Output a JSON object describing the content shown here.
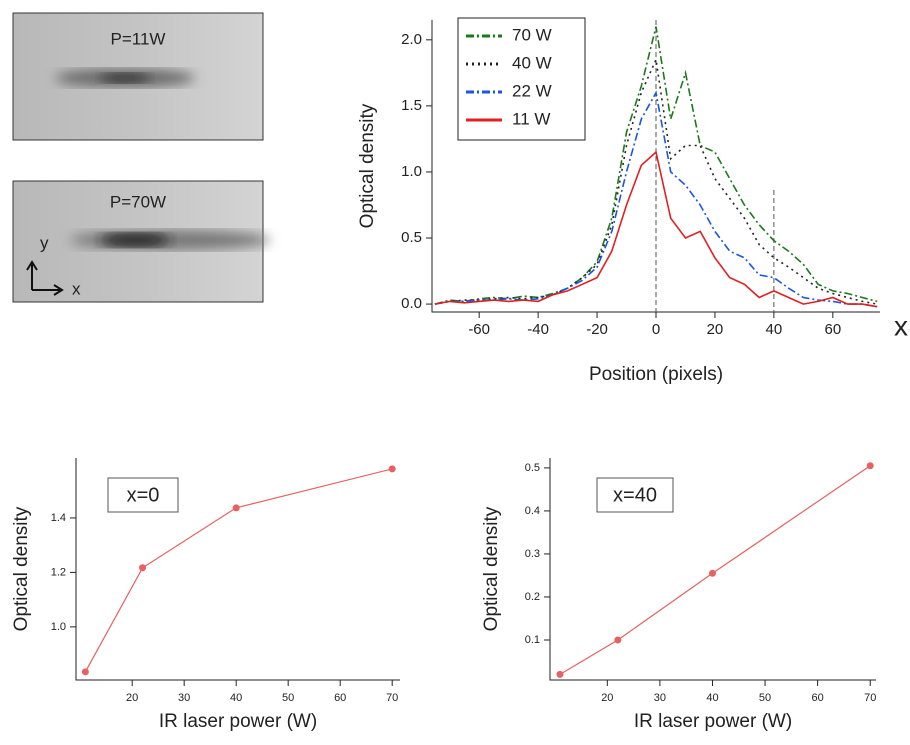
{
  "images": [
    {
      "label": "P=11W"
    },
    {
      "label": "P=70W",
      "axis_y": "y",
      "axis_x": "x"
    }
  ],
  "side_label": "x",
  "chart_data": [
    {
      "type": "line",
      "xlabel": "Position (pixels)",
      "ylabel": "Optical density",
      "xlim": [
        -76,
        76
      ],
      "ylim": [
        -0.06,
        2.15
      ],
      "xticks": [
        -60,
        -40,
        -20,
        0,
        20,
        40,
        60
      ],
      "yticks": [
        {
          "value": 0,
          "label": "0.0"
        },
        {
          "value": 0.5,
          "label": "0.5"
        },
        {
          "value": 1,
          "label": "1.0"
        },
        {
          "value": 1.5,
          "label": "1.5"
        },
        {
          "value": 2,
          "label": "2.0"
        }
      ],
      "vlines": [
        0,
        40
      ],
      "legend": "top-left",
      "x": [
        -75,
        -70,
        -65,
        -60,
        -55,
        -50,
        -45,
        -40,
        -35,
        -30,
        -25,
        -20,
        -15,
        -10,
        -5,
        0,
        5,
        10,
        15,
        20,
        25,
        30,
        35,
        40,
        45,
        50,
        55,
        60,
        65,
        70,
        75
      ],
      "series": [
        {
          "name": "70 W",
          "color": "#1a7a1a",
          "dash": "dashdot",
          "values": [
            0.0,
            0.03,
            0.02,
            0.04,
            0.05,
            0.04,
            0.06,
            0.05,
            0.08,
            0.12,
            0.2,
            0.32,
            0.65,
            1.3,
            1.65,
            2.1,
            1.4,
            1.75,
            1.2,
            1.15,
            0.95,
            0.75,
            0.6,
            0.48,
            0.4,
            0.3,
            0.15,
            0.1,
            0.08,
            0.05,
            0.02
          ]
        },
        {
          "name": "40 W",
          "color": "#222222",
          "dash": "dot",
          "values": [
            0.0,
            0.02,
            0.03,
            0.03,
            0.04,
            0.05,
            0.04,
            0.05,
            0.07,
            0.12,
            0.2,
            0.3,
            0.6,
            1.2,
            1.6,
            1.85,
            1.1,
            1.2,
            1.2,
            0.95,
            0.8,
            0.65,
            0.45,
            0.35,
            0.28,
            0.2,
            0.12,
            0.08,
            0.05,
            0.02,
            0.0
          ]
        },
        {
          "name": "22 W",
          "color": "#1a55e6",
          "dash": "dashdot",
          "values": [
            0.0,
            0.02,
            0.02,
            0.03,
            0.03,
            0.04,
            0.03,
            0.04,
            0.07,
            0.12,
            0.18,
            0.28,
            0.55,
            1.0,
            1.4,
            1.6,
            1.0,
            0.9,
            0.75,
            0.55,
            0.4,
            0.35,
            0.22,
            0.2,
            0.12,
            0.05,
            0.03,
            0.02,
            0.0,
            0.0,
            -0.02
          ]
        },
        {
          "name": "11 W",
          "color": "#e02020",
          "dash": "solid",
          "values": [
            0.0,
            0.02,
            0.01,
            0.02,
            0.03,
            0.02,
            0.03,
            0.02,
            0.07,
            0.1,
            0.15,
            0.2,
            0.4,
            0.75,
            1.05,
            1.15,
            0.65,
            0.5,
            0.55,
            0.35,
            0.2,
            0.15,
            0.05,
            0.1,
            0.05,
            0.0,
            0.02,
            0.05,
            0.0,
            0.0,
            -0.02
          ]
        }
      ]
    },
    {
      "type": "line",
      "annotation": "x=0",
      "xlabel": "IR laser power (W)",
      "ylabel": "Optical density",
      "xlim": [
        9.2,
        71.5
      ],
      "ylim": [
        0.805,
        1.62
      ],
      "xticks": [
        20,
        30,
        40,
        50,
        60,
        70
      ],
      "yticks": [
        {
          "value": 1,
          "label": "1.0"
        },
        {
          "value": 1.2,
          "label": "1.2"
        },
        {
          "value": 1.4,
          "label": "1.4"
        }
      ],
      "x": [
        11,
        22,
        40,
        70
      ],
      "markers": true,
      "series": [
        {
          "color": "#e86060",
          "values": [
            0.835,
            1.217,
            1.437,
            1.58
          ]
        }
      ]
    },
    {
      "type": "line",
      "annotation": "x=40",
      "xlabel": "IR laser power (W)",
      "ylabel": "Optical density",
      "xlim": [
        9.1,
        71.1
      ],
      "ylim": [
        0.007,
        0.523
      ],
      "xticks": [
        20,
        30,
        40,
        50,
        60,
        70
      ],
      "yticks": [
        0.1,
        0.2,
        0.3,
        0.4,
        0.5
      ],
      "x": [
        11,
        22,
        40,
        70
      ],
      "markers": true,
      "series": [
        {
          "color": "#e86060",
          "values": [
            0.02,
            0.1,
            0.255,
            0.505
          ]
        }
      ]
    }
  ]
}
